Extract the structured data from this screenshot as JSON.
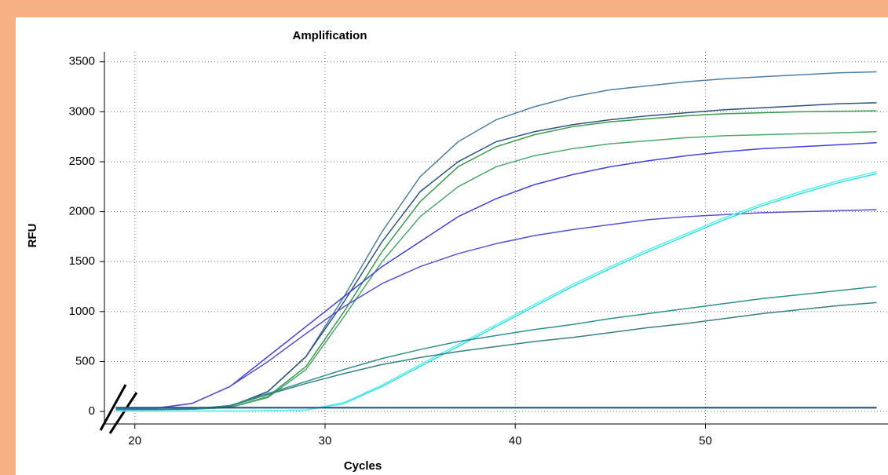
{
  "chart_data": {
    "type": "line",
    "title": "Amplification",
    "x_label": "Cycles",
    "y_label": "RFU",
    "x": [
      19,
      21,
      23,
      25,
      27,
      29,
      31,
      33,
      35,
      37,
      39,
      41,
      43,
      45,
      47,
      49,
      51,
      53,
      55,
      57,
      59
    ],
    "xlim": [
      18.4,
      59.6
    ],
    "xticks": [
      20,
      30,
      40,
      50
    ],
    "ylim": [
      -125,
      3600
    ],
    "yticks": [
      0,
      500,
      1000,
      1500,
      2000,
      2500,
      3000,
      3500
    ],
    "grid": true,
    "series": [
      {
        "color": "#4d7ea6",
        "values": [
          20,
          20,
          25,
          50,
          200,
          550,
          1150,
          1800,
          2350,
          2700,
          2920,
          3050,
          3150,
          3220,
          3260,
          3300,
          3330,
          3350,
          3370,
          3390,
          3400
        ]
      },
      {
        "color": "#2b5380",
        "values": [
          20,
          20,
          25,
          50,
          200,
          550,
          1100,
          1700,
          2200,
          2500,
          2700,
          2800,
          2870,
          2920,
          2960,
          2990,
          3020,
          3040,
          3060,
          3080,
          3090
        ]
      },
      {
        "color": "#3a9a4a",
        "values": [
          20,
          20,
          22,
          40,
          150,
          450,
          1000,
          1600,
          2100,
          2450,
          2650,
          2770,
          2850,
          2900,
          2930,
          2960,
          2980,
          2990,
          3000,
          3005,
          3010
        ]
      },
      {
        "color": "#4aa86a",
        "values": [
          20,
          20,
          22,
          40,
          140,
          420,
          950,
          1500,
          1950,
          2250,
          2450,
          2560,
          2630,
          2680,
          2710,
          2740,
          2760,
          2770,
          2780,
          2790,
          2800
        ]
      },
      {
        "color": "#4040e0",
        "values": [
          25,
          30,
          80,
          250,
          550,
          850,
          1150,
          1450,
          1700,
          1950,
          2130,
          2270,
          2370,
          2450,
          2510,
          2560,
          2600,
          2630,
          2650,
          2670,
          2690
        ]
      },
      {
        "color": "#5252d0",
        "values": [
          25,
          30,
          80,
          250,
          500,
          780,
          1050,
          1280,
          1450,
          1580,
          1680,
          1760,
          1820,
          1870,
          1920,
          1950,
          1970,
          1990,
          2000,
          2010,
          2020
        ]
      },
      {
        "color": "#30e0e0",
        "values": [
          5,
          5,
          5,
          5,
          8,
          15,
          80,
          250,
          450,
          650,
          850,
          1050,
          1250,
          1430,
          1600,
          1760,
          1920,
          2060,
          2180,
          2290,
          2380
        ]
      },
      {
        "color": "#5ff0f0",
        "values": [
          5,
          5,
          5,
          5,
          8,
          15,
          90,
          265,
          470,
          670,
          870,
          1070,
          1270,
          1450,
          1620,
          1780,
          1940,
          2080,
          2200,
          2310,
          2400
        ]
      },
      {
        "color": "#2f8f8f",
        "values": [
          20,
          20,
          25,
          60,
          180,
          300,
          420,
          530,
          620,
          700,
          760,
          820,
          870,
          930,
          980,
          1030,
          1080,
          1130,
          1170,
          1210,
          1250
        ]
      },
      {
        "color": "#3a8080",
        "values": [
          20,
          20,
          25,
          55,
          170,
          280,
          380,
          470,
          540,
          600,
          650,
          700,
          740,
          790,
          840,
          880,
          930,
          980,
          1020,
          1060,
          1090
        ]
      },
      {
        "color": "#1e3a6e",
        "values": [
          40,
          40,
          40,
          40,
          40,
          40,
          40,
          40,
          40,
          40,
          40,
          40,
          40,
          40,
          40,
          40,
          40,
          40,
          40,
          40,
          40
        ]
      },
      {
        "color": "#20608a",
        "values": [
          35,
          35,
          35,
          35,
          35,
          35,
          35,
          35,
          35,
          35,
          35,
          35,
          35,
          35,
          35,
          35,
          35,
          35,
          35,
          35,
          35
        ]
      }
    ]
  }
}
